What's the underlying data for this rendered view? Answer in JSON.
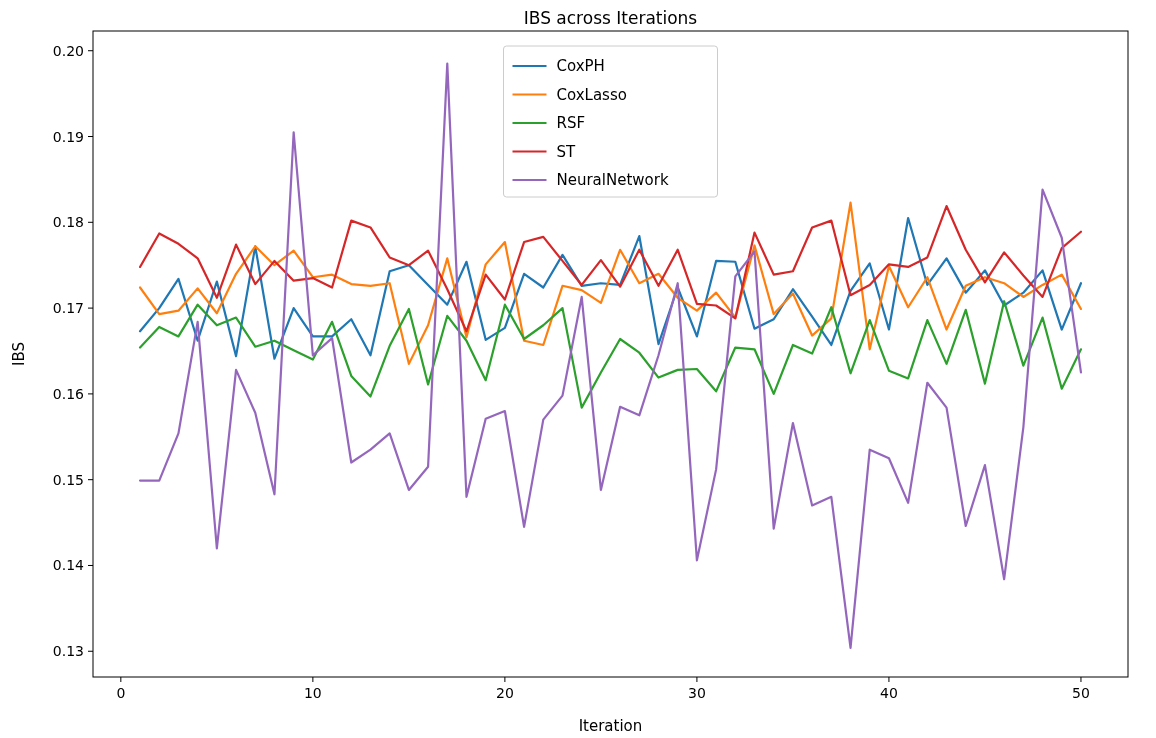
{
  "chart_data": {
    "type": "line",
    "title": "IBS across Iterations",
    "xlabel": "Iteration",
    "ylabel": "IBS",
    "x": [
      1,
      2,
      3,
      4,
      5,
      6,
      7,
      8,
      9,
      10,
      11,
      12,
      13,
      14,
      15,
      16,
      17,
      18,
      19,
      20,
      21,
      22,
      23,
      24,
      25,
      26,
      27,
      28,
      29,
      30,
      31,
      32,
      33,
      34,
      35,
      36,
      37,
      38,
      39,
      40,
      41,
      42,
      43,
      44,
      45,
      46,
      47,
      48,
      49,
      50
    ],
    "series": [
      {
        "name": "CoxPH",
        "color": "#1f77b4",
        "values": [
          0.1673,
          0.17,
          0.1734,
          0.1662,
          0.1731,
          0.1644,
          0.1772,
          0.1641,
          0.17,
          0.1667,
          0.1667,
          0.1687,
          0.1645,
          0.1743,
          0.175,
          0.1727,
          0.1704,
          0.1754,
          0.1663,
          0.1677,
          0.174,
          0.1724,
          0.1762,
          0.1726,
          0.1729,
          0.1727,
          0.1784,
          0.1658,
          0.1724,
          0.1667,
          0.1755,
          0.1754,
          0.1676,
          0.1687,
          0.1722,
          0.169,
          0.1657,
          0.172,
          0.1752,
          0.1675,
          0.1805,
          0.1727,
          0.1758,
          0.1718,
          0.1744,
          0.1703,
          0.1718,
          0.1744,
          0.1675,
          0.1729
        ]
      },
      {
        "name": "CoxLasso",
        "color": "#ff7f0e",
        "values": [
          0.1724,
          0.1693,
          0.1697,
          0.1723,
          0.1694,
          0.174,
          0.1772,
          0.175,
          0.1767,
          0.1736,
          0.1739,
          0.1728,
          0.1726,
          0.1729,
          0.1635,
          0.168,
          0.1758,
          0.1666,
          0.1751,
          0.1777,
          0.1662,
          0.1657,
          0.1726,
          0.1721,
          0.1706,
          0.1768,
          0.1729,
          0.174,
          0.1712,
          0.1697,
          0.1718,
          0.1689,
          0.1773,
          0.1693,
          0.1717,
          0.1668,
          0.1688,
          0.1823,
          0.1652,
          0.1749,
          0.1701,
          0.1736,
          0.1675,
          0.1726,
          0.1736,
          0.1729,
          0.1713,
          0.1727,
          0.1739,
          0.1699
        ]
      },
      {
        "name": "RSF",
        "color": "#2ca02c",
        "values": [
          0.1654,
          0.1678,
          0.1667,
          0.1704,
          0.168,
          0.1689,
          0.1655,
          0.1662,
          0.1651,
          0.164,
          0.1684,
          0.1621,
          0.1597,
          0.1656,
          0.1699,
          0.1611,
          0.1691,
          0.1662,
          0.1616,
          0.1704,
          0.1664,
          0.168,
          0.17,
          0.1584,
          0.1625,
          0.1664,
          0.1648,
          0.1619,
          0.1628,
          0.1629,
          0.1603,
          0.1654,
          0.1652,
          0.16,
          0.1657,
          0.1647,
          0.1701,
          0.1624,
          0.1686,
          0.1627,
          0.1618,
          0.1686,
          0.1635,
          0.1698,
          0.1612,
          0.1708,
          0.1633,
          0.1689,
          0.1606,
          0.1652
        ]
      },
      {
        "name": "ST",
        "color": "#d62728",
        "values": [
          0.1748,
          0.1787,
          0.1775,
          0.1758,
          0.1712,
          0.1774,
          0.1728,
          0.1755,
          0.1732,
          0.1735,
          0.1724,
          0.1802,
          0.1794,
          0.1759,
          0.175,
          0.1767,
          0.1722,
          0.1673,
          0.1739,
          0.171,
          0.1777,
          0.1783,
          0.1755,
          0.1727,
          0.1756,
          0.1725,
          0.1768,
          0.1726,
          0.1768,
          0.1705,
          0.1703,
          0.1688,
          0.1788,
          0.1739,
          0.1743,
          0.1794,
          0.1802,
          0.1715,
          0.1727,
          0.1751,
          0.1748,
          0.1759,
          0.1819,
          0.1768,
          0.173,
          0.1765,
          0.1738,
          0.1713,
          0.177,
          0.1789
        ]
      },
      {
        "name": "NeuralNetwork",
        "color": "#9467bd",
        "values": [
          0.1499,
          0.1499,
          0.1554,
          0.1684,
          0.142,
          0.1628,
          0.1578,
          0.1483,
          0.1905,
          0.1645,
          0.1665,
          0.152,
          0.1535,
          0.1554,
          0.1488,
          0.1515,
          0.1985,
          0.148,
          0.1571,
          0.158,
          0.1445,
          0.157,
          0.1598,
          0.1713,
          0.1488,
          0.1585,
          0.1575,
          0.1645,
          0.1729,
          0.1406,
          0.1512,
          0.1737,
          0.1766,
          0.1443,
          0.1566,
          0.147,
          0.148,
          0.1304,
          0.1535,
          0.1525,
          0.1473,
          0.1613,
          0.1584,
          0.1446,
          0.1517,
          0.1384,
          0.1561,
          0.1838,
          0.1782,
          0.1625
        ]
      }
    ],
    "xlim": [
      -1.45,
      52.45
    ],
    "ylim": [
      0.127,
      0.2023
    ],
    "xticks": [
      0,
      10,
      20,
      30,
      40,
      50
    ],
    "yticks": [
      {
        "value": 0.13,
        "label": "0.13"
      },
      {
        "value": 0.14,
        "label": "0.14"
      },
      {
        "value": 0.15,
        "label": "0.15"
      },
      {
        "value": 0.16,
        "label": "0.16"
      },
      {
        "value": 0.17,
        "label": "0.17"
      },
      {
        "value": 0.18,
        "label": "0.18"
      },
      {
        "value": 0.19,
        "label": "0.19"
      },
      {
        "value": 0.2,
        "label": "0.20"
      }
    ],
    "legend": "top",
    "grid": false,
    "marker": "none",
    "line_style": "solid"
  }
}
